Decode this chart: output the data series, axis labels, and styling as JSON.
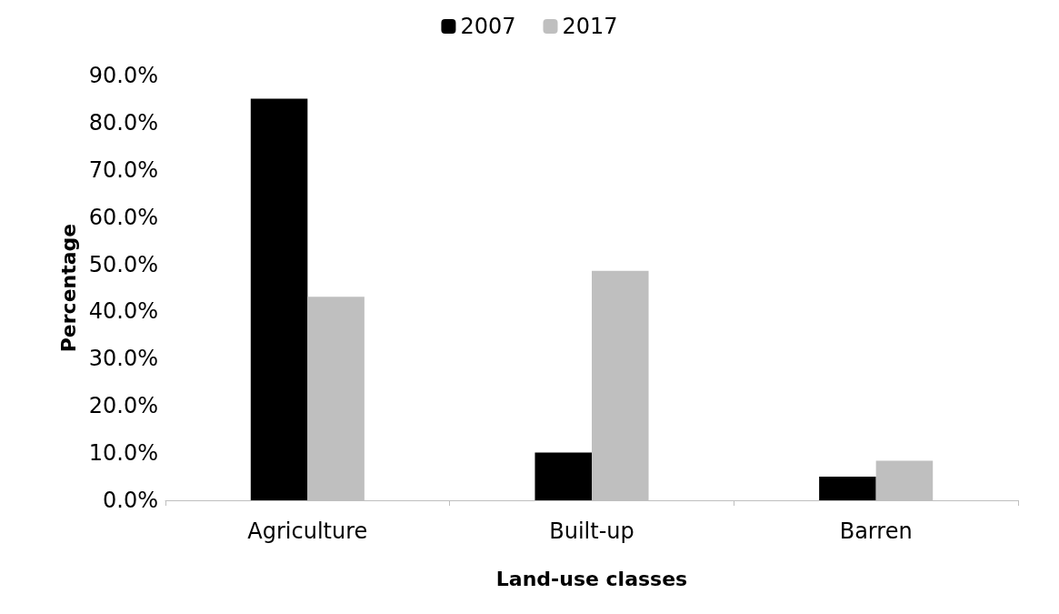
{
  "chart_data": {
    "type": "bar",
    "xlabel": "Land-use classes",
    "ylabel": "Percentage",
    "categories": [
      "Agriculture",
      "Built-up",
      "Barren"
    ],
    "series": [
      {
        "name": "2007",
        "color": "#000000",
        "values": [
          85.1,
          10.1,
          5.0
        ]
      },
      {
        "name": "2017",
        "color": "#bfbfbf",
        "values": [
          43.1,
          48.6,
          8.4
        ]
      }
    ],
    "ylim": [
      0,
      90
    ],
    "yticks": [
      {
        "value": 0,
        "label": "0.0%"
      },
      {
        "value": 10,
        "label": "10.0%"
      },
      {
        "value": 20,
        "label": "20.0%"
      },
      {
        "value": 30,
        "label": "30.0%"
      },
      {
        "value": 40,
        "label": "40.0%"
      },
      {
        "value": 50,
        "label": "50.0%"
      },
      {
        "value": 60,
        "label": "60.0%"
      },
      {
        "value": 70,
        "label": "70.0%"
      },
      {
        "value": 80,
        "label": "80.0%"
      },
      {
        "value": 90,
        "label": "90.0%"
      }
    ],
    "grid": false,
    "legend": "top"
  }
}
